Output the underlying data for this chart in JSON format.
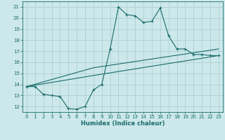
{
  "background_color": "#cce8ea",
  "grid_color": "#b0d0d3",
  "line_color": "#1a6b6b",
  "xlabel": "Humidex (Indice chaleur)",
  "xlim": [
    -0.5,
    23.5
  ],
  "ylim": [
    11.5,
    21.5
  ],
  "yticks": [
    12,
    13,
    14,
    15,
    16,
    17,
    18,
    19,
    20,
    21
  ],
  "xticks": [
    0,
    1,
    2,
    3,
    4,
    5,
    6,
    7,
    8,
    9,
    10,
    11,
    12,
    13,
    14,
    15,
    16,
    17,
    18,
    19,
    20,
    21,
    22,
    23
  ],
  "line1_x": [
    0,
    1,
    2,
    3,
    4,
    5,
    6,
    7,
    8,
    9,
    10,
    11,
    12,
    13,
    14,
    15,
    16,
    17,
    18,
    19,
    20,
    21,
    22,
    23
  ],
  "line1_y": [
    13.8,
    13.8,
    13.1,
    13.0,
    12.9,
    11.8,
    11.75,
    12.0,
    13.5,
    14.0,
    17.2,
    21.0,
    20.3,
    20.2,
    19.6,
    19.7,
    20.9,
    18.4,
    17.2,
    17.2,
    16.7,
    16.7,
    16.6,
    16.6
  ],
  "line2_x": [
    0,
    8,
    23
  ],
  "line2_y": [
    13.8,
    15.5,
    17.2
  ],
  "line3_x": [
    0,
    8,
    23
  ],
  "line3_y": [
    13.8,
    14.8,
    16.6
  ]
}
